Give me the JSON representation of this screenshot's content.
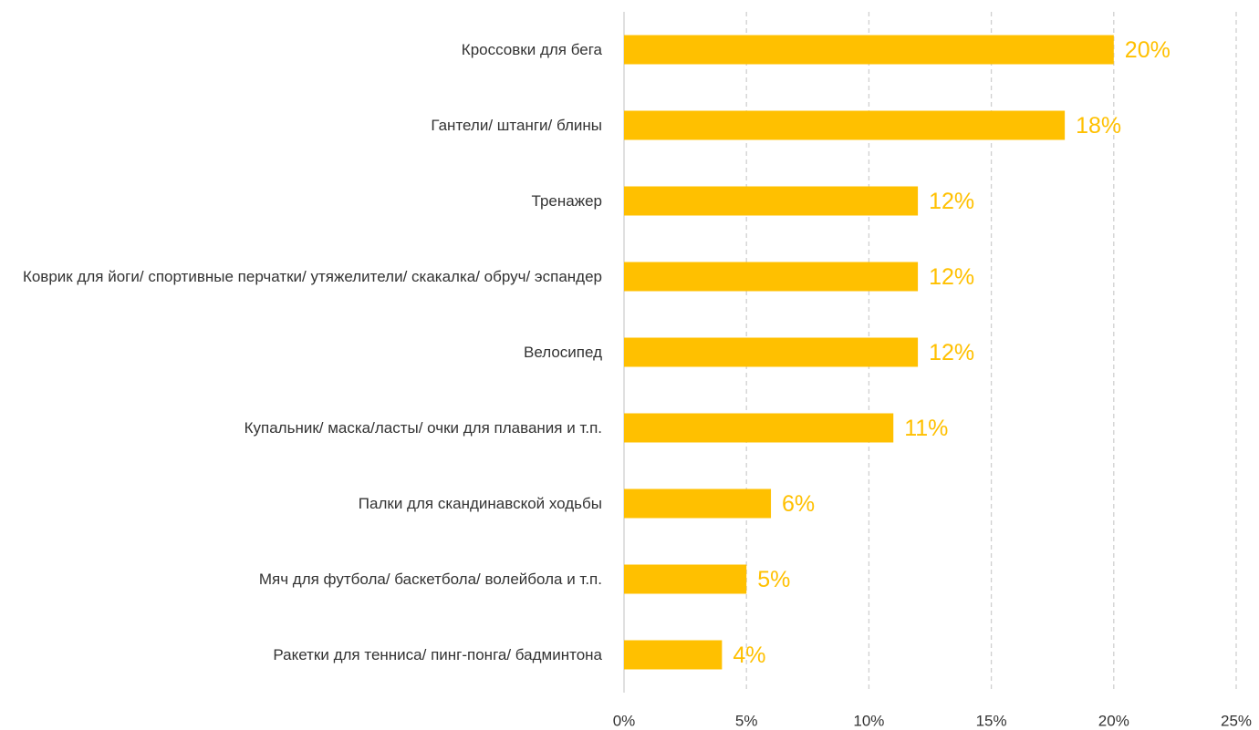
{
  "chart_data": {
    "type": "bar",
    "orientation": "horizontal",
    "categories": [
      "Кроссовки для бега",
      "Гантели/ штанги/ блины",
      "Тренажер",
      "Коврик для йоги/ спортивные перчатки/ утяжелители/ скакалка/ обруч/ эспандер",
      "Велосипед",
      "Купальник/ маска/ласты/ очки для плавания и т.п.",
      "Палки для скандинавской ходьбы",
      "Мяч для футбола/ баскетбола/ волейбола и т.п.",
      "Ракетки для тенниса/ пинг-понга/ бадминтона"
    ],
    "values": [
      20,
      18,
      12,
      12,
      12,
      11,
      6,
      5,
      4
    ],
    "value_labels": [
      "20%",
      "18%",
      "12%",
      "12%",
      "12%",
      "11%",
      "6%",
      "5%",
      "4%"
    ],
    "color": "#FFC000",
    "xlim": [
      0,
      25
    ],
    "xticks": [
      {
        "value": 0,
        "label": "0%"
      },
      {
        "value": 5,
        "label": "5%"
      },
      {
        "value": 10,
        "label": "10%"
      },
      {
        "value": 15,
        "label": "15%"
      },
      {
        "value": 20,
        "label": "20%"
      },
      {
        "value": 25,
        "label": "25%"
      }
    ],
    "grid": true
  }
}
